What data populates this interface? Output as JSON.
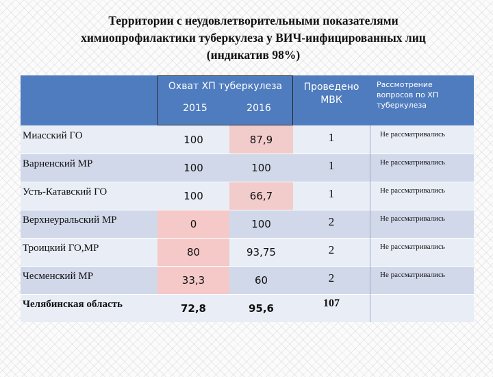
{
  "title": {
    "line1": "Территории с неудовлетворительными показателями",
    "line2": "химиопрофилактики туберкулеза у ВИЧ-инфицированных лиц",
    "line3": "(индикатив 98%)"
  },
  "header": {
    "coverage_label": "Охват ХП туберкулеза",
    "year1": "2015",
    "year2": "2016",
    "mvk_label_line1": "Проведено",
    "mvk_label_line2": "МВК",
    "review_line1": "Рассмотрение",
    "review_line2": "вопросов по ХП",
    "review_line3": "туберкулеза"
  },
  "rows": [
    {
      "name": "Миасский ГО",
      "y2015": "100",
      "y2016": "87,9",
      "mvk": "1",
      "review": "Не рассматривались"
    },
    {
      "name": "Варненский  МР",
      "y2015": "100",
      "y2016": "100",
      "mvk": "1",
      "review": "Не рассматривались"
    },
    {
      "name": "Усть-Катавский ГО",
      "y2015": "100",
      "y2016": "66,7",
      "mvk": "1",
      "review": "Не рассматривались"
    },
    {
      "name": "Верхнеуральский МР",
      "y2015": "0",
      "y2016": "100",
      "mvk": "2",
      "review": "Не рассматривались"
    },
    {
      "name": "Троицкий ГО,МР",
      "y2015": "80",
      "y2016": "93,75",
      "mvk": "2",
      "review": "Не рассматривались"
    },
    {
      "name": "Чесменский МР",
      "y2015": "33,3",
      "y2016": "60",
      "mvk": "2",
      "review": "Не рассматривались"
    }
  ],
  "total": {
    "name": "Челябинская область",
    "y2015": "72,8",
    "y2016": "95,6",
    "mvk": "107",
    "review": ""
  },
  "colors": {
    "header_blue": "#4f7cbe",
    "highlight_pink": "#f2cccb",
    "band_light": "#e8edf6",
    "band_dark": "#d0d8e9"
  }
}
